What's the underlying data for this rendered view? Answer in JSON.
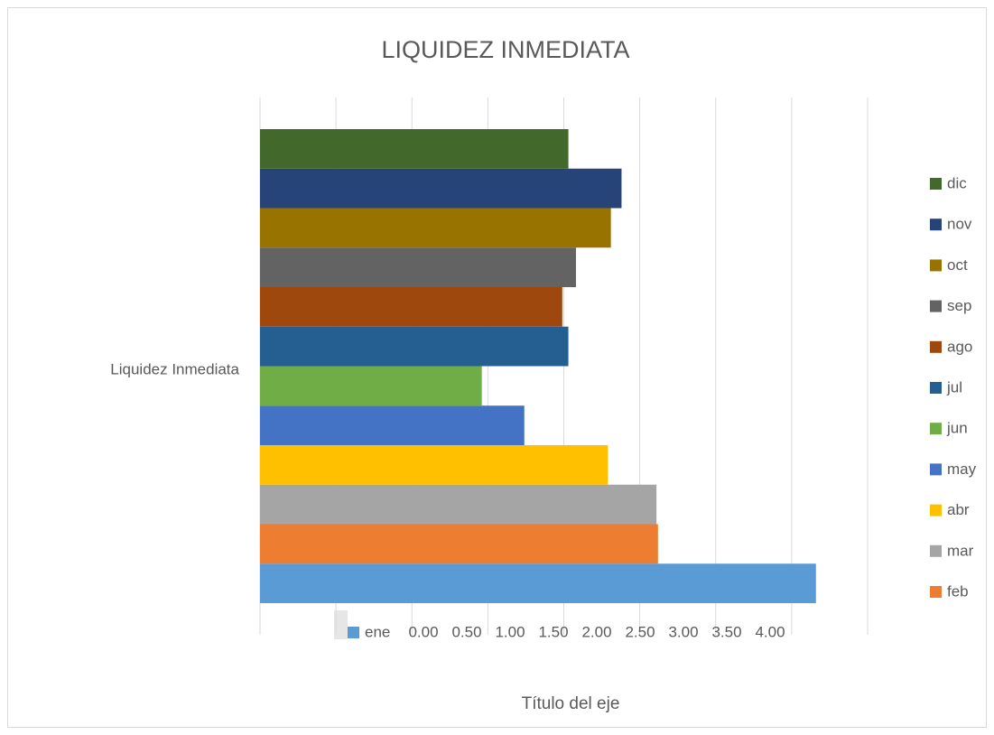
{
  "chart_data": {
    "type": "bar",
    "orientation": "horizontal",
    "title": "LIQUIDEZ INMEDIATA",
    "x_axis_title": "Título del eje",
    "categories": [
      "Liquidez Inmediata"
    ],
    "series": [
      {
        "name": "ene",
        "color": "#5b9bd5",
        "values": [
          3.66
        ]
      },
      {
        "name": "feb",
        "color": "#ed7d31",
        "values": [
          2.62
        ]
      },
      {
        "name": "mar",
        "color": "#a5a5a5",
        "values": [
          2.61
        ]
      },
      {
        "name": "abr",
        "color": "#ffc000",
        "values": [
          2.29
        ]
      },
      {
        "name": "may",
        "color": "#4472c4",
        "values": [
          1.74
        ]
      },
      {
        "name": "jun",
        "color": "#70ad47",
        "values": [
          1.46
        ]
      },
      {
        "name": "jul",
        "color": "#255e91",
        "values": [
          2.03
        ]
      },
      {
        "name": "ago",
        "color": "#9e480e",
        "values": [
          1.99
        ]
      },
      {
        "name": "sep",
        "color": "#636363",
        "values": [
          2.08
        ]
      },
      {
        "name": "oct",
        "color": "#997300",
        "values": [
          2.31
        ]
      },
      {
        "name": "nov",
        "color": "#264478",
        "values": [
          2.38
        ]
      },
      {
        "name": "dic",
        "color": "#43682b",
        "values": [
          2.03
        ]
      }
    ],
    "xlim": [
      0,
      4
    ],
    "xticks": [
      {
        "value": 0,
        "label": "0.00"
      },
      {
        "value": 0.5,
        "label": "0.50"
      },
      {
        "value": 1,
        "label": "1.00"
      },
      {
        "value": 1.5,
        "label": "1.50"
      },
      {
        "value": 2,
        "label": "2.00"
      },
      {
        "value": 2.5,
        "label": "2.50"
      },
      {
        "value": 3,
        "label": "3.00"
      },
      {
        "value": 3.5,
        "label": "3.50"
      },
      {
        "value": 4,
        "label": "4.00"
      }
    ],
    "grid": true
  }
}
